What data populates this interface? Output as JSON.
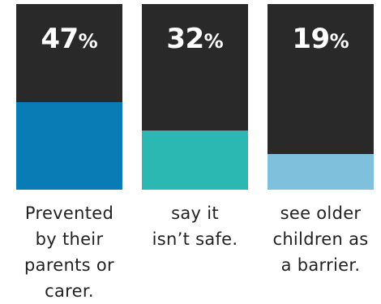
{
  "chart_data": {
    "type": "bar",
    "ylim": [
      0,
      100
    ],
    "colors": {
      "background_bar": "#292929",
      "series": [
        "#0a7cb5",
        "#2bb8b2",
        "#7fc1dd"
      ]
    },
    "bars": [
      {
        "value": 47,
        "value_text": "47",
        "unit": "%",
        "caption_lines": [
          "Prevented",
          "by their",
          "parents or",
          "carer."
        ]
      },
      {
        "value": 32,
        "value_text": "32",
        "unit": "%",
        "caption_lines": [
          "say it",
          "isn’t safe."
        ]
      },
      {
        "value": 19,
        "value_text": "19",
        "unit": "%",
        "caption_lines": [
          "see older",
          "children as",
          "a barrier."
        ]
      }
    ]
  }
}
